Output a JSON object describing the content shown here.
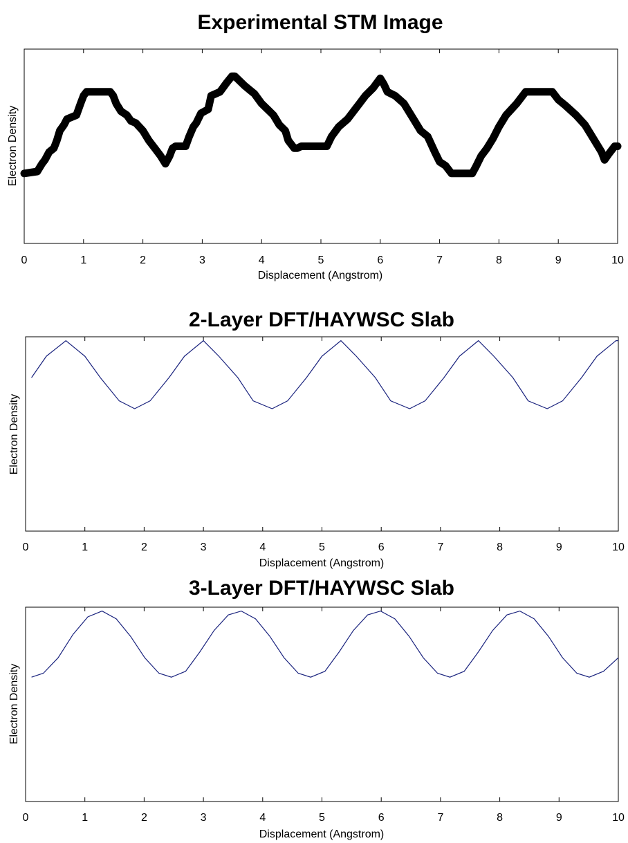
{
  "chart_data": [
    {
      "type": "line",
      "title": "Experimental STM Image",
      "xlabel": "Displacement (Angstrom)",
      "ylabel": "Electron Density",
      "xlim": [
        0,
        10
      ],
      "ylim": [
        0,
        1
      ],
      "xticks": [
        "0",
        "1",
        "2",
        "3",
        "4",
        "5",
        "6",
        "7",
        "8",
        "9",
        "10"
      ],
      "grid": false,
      "series": [
        {
          "color": "#000000",
          "x": [
            0.0,
            0.22,
            0.3,
            0.35,
            0.42,
            0.5,
            0.55,
            0.6,
            0.67,
            0.72,
            0.88,
            0.95,
            1.0,
            1.05,
            1.45,
            1.5,
            1.55,
            1.63,
            1.73,
            1.8,
            1.88,
            2.0,
            2.1,
            2.2,
            2.3,
            2.38,
            2.45,
            2.5,
            2.55,
            2.72,
            2.78,
            2.85,
            2.9,
            2.98,
            3.1,
            3.15,
            3.3,
            3.42,
            3.5,
            3.55,
            3.72,
            3.8,
            3.88,
            4.0,
            4.1,
            4.2,
            4.3,
            4.4,
            4.45,
            4.55,
            4.6,
            4.67,
            4.75,
            5.05,
            5.1,
            5.18,
            5.3,
            5.45,
            5.55,
            5.65,
            5.75,
            5.88,
            6.0,
            6.06,
            6.12,
            6.25,
            6.4,
            6.5,
            6.58,
            6.68,
            6.8,
            6.92,
            7.0,
            7.1,
            7.2,
            7.55,
            7.62,
            7.7,
            7.8,
            7.9,
            8.0,
            8.12,
            8.3,
            8.45,
            8.9,
            9.0,
            9.12,
            9.3,
            9.45,
            9.55,
            9.65,
            9.73,
            9.78,
            9.85,
            9.95,
            10.0
          ],
          "y": [
            0.36,
            0.37,
            0.41,
            0.43,
            0.47,
            0.49,
            0.53,
            0.58,
            0.61,
            0.64,
            0.66,
            0.72,
            0.76,
            0.78,
            0.78,
            0.76,
            0.72,
            0.68,
            0.66,
            0.63,
            0.62,
            0.58,
            0.53,
            0.49,
            0.45,
            0.41,
            0.45,
            0.49,
            0.5,
            0.5,
            0.55,
            0.6,
            0.62,
            0.67,
            0.69,
            0.76,
            0.78,
            0.83,
            0.86,
            0.86,
            0.81,
            0.79,
            0.77,
            0.72,
            0.69,
            0.66,
            0.61,
            0.58,
            0.53,
            0.49,
            0.49,
            0.5,
            0.5,
            0.5,
            0.5,
            0.55,
            0.6,
            0.64,
            0.68,
            0.72,
            0.76,
            0.8,
            0.85,
            0.82,
            0.78,
            0.76,
            0.72,
            0.67,
            0.63,
            0.58,
            0.55,
            0.47,
            0.42,
            0.4,
            0.36,
            0.36,
            0.4,
            0.45,
            0.49,
            0.54,
            0.6,
            0.66,
            0.72,
            0.78,
            0.78,
            0.74,
            0.71,
            0.66,
            0.61,
            0.56,
            0.51,
            0.47,
            0.43,
            0.46,
            0.5,
            0.5
          ]
        }
      ]
    },
    {
      "type": "line",
      "title": "2-Layer DFT/HAYWSC Slab",
      "xlabel": "Displacement (Angstrom)",
      "ylabel": "Electron Density",
      "xlim": [
        0,
        10
      ],
      "ylim": [
        0,
        1
      ],
      "xticks": [
        "0",
        "1",
        "2",
        "3",
        "4",
        "5",
        "6",
        "7",
        "8",
        "9",
        "10"
      ],
      "grid": false,
      "series": [
        {
          "color": "#1a237e",
          "period": 2.32,
          "x": [
            0.1,
            0.35,
            0.68,
            1.0,
            1.26,
            1.58,
            1.84,
            2.1,
            2.42,
            2.68,
            3.0,
            3.26,
            3.58,
            3.84,
            4.16,
            4.42,
            4.74,
            5.0,
            5.32,
            5.58,
            5.9,
            6.16,
            6.48,
            6.74,
            7.06,
            7.32,
            7.64,
            7.9,
            8.22,
            8.48,
            8.8,
            9.06,
            9.38,
            9.64,
            9.96,
            10.0
          ],
          "y": [
            0.79,
            0.9,
            0.98,
            0.9,
            0.79,
            0.67,
            0.63,
            0.67,
            0.79,
            0.9,
            0.98,
            0.9,
            0.79,
            0.67,
            0.63,
            0.67,
            0.79,
            0.9,
            0.98,
            0.9,
            0.79,
            0.67,
            0.63,
            0.67,
            0.79,
            0.9,
            0.98,
            0.9,
            0.79,
            0.67,
            0.63,
            0.67,
            0.79,
            0.9,
            0.98,
            0.98
          ]
        }
      ]
    },
    {
      "type": "line",
      "title": "3-Layer DFT/HAYWSC Slab",
      "xlabel": "Displacement (Angstrom)",
      "ylabel": "Electron Density",
      "xlim": [
        0,
        10
      ],
      "ylim": [
        0,
        1
      ],
      "xticks": [
        "0",
        "1",
        "2",
        "3",
        "4",
        "5",
        "6",
        "7",
        "8",
        "9",
        "10"
      ],
      "grid": false,
      "series": [
        {
          "color": "#1a237e",
          "period": 2.35,
          "x": [
            0.1,
            0.3,
            0.55,
            0.8,
            1.05,
            1.29,
            1.53,
            1.77,
            2.01,
            2.25,
            2.46,
            2.7,
            2.94,
            3.18,
            3.42,
            3.64,
            3.88,
            4.12,
            4.36,
            4.6,
            4.81,
            5.05,
            5.29,
            5.53,
            5.77,
            5.99,
            6.23,
            6.47,
            6.71,
            6.95,
            7.16,
            7.4,
            7.64,
            7.88,
            8.12,
            8.34,
            8.58,
            8.82,
            9.06,
            9.3,
            9.51,
            9.75,
            10.0
          ],
          "y": [
            0.64,
            0.66,
            0.74,
            0.86,
            0.95,
            0.98,
            0.94,
            0.85,
            0.74,
            0.66,
            0.64,
            0.67,
            0.77,
            0.88,
            0.96,
            0.98,
            0.94,
            0.85,
            0.74,
            0.66,
            0.64,
            0.67,
            0.77,
            0.88,
            0.96,
            0.98,
            0.94,
            0.85,
            0.74,
            0.66,
            0.64,
            0.67,
            0.77,
            0.88,
            0.96,
            0.98,
            0.94,
            0.85,
            0.74,
            0.66,
            0.64,
            0.67,
            0.74
          ]
        }
      ]
    }
  ]
}
